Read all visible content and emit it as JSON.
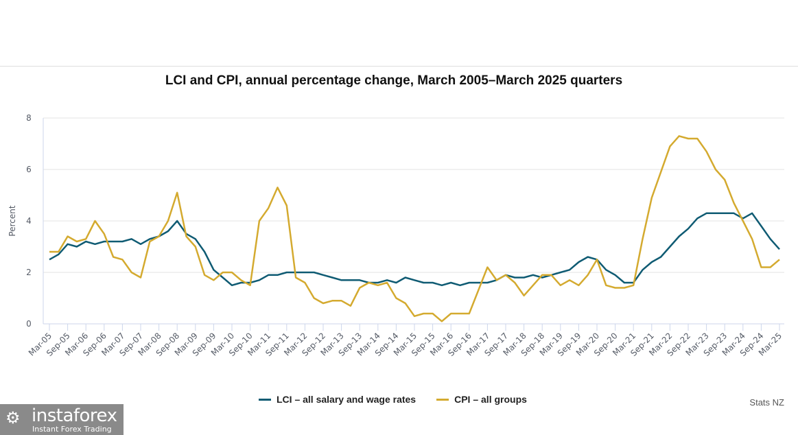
{
  "chart_data": {
    "type": "line",
    "title": "LCI and CPI, annual percentage change, March 2005–March 2025 quarters",
    "xlabel": "",
    "ylabel": "Percent",
    "ylim": [
      0,
      8
    ],
    "yticks": [
      "0",
      "2",
      "4",
      "6",
      "8"
    ],
    "grid": true,
    "legend_position": "bottom",
    "x": [
      "Mar-05",
      "Jun-05",
      "Sep-05",
      "Dec-05",
      "Mar-06",
      "Jun-06",
      "Sep-06",
      "Dec-06",
      "Mar-07",
      "Jun-07",
      "Sep-07",
      "Dec-07",
      "Mar-08",
      "Jun-08",
      "Sep-08",
      "Dec-08",
      "Mar-09",
      "Jun-09",
      "Sep-09",
      "Dec-09",
      "Mar-10",
      "Jun-10",
      "Sep-10",
      "Dec-10",
      "Mar-11",
      "Jun-11",
      "Sep-11",
      "Dec-11",
      "Mar-12",
      "Jun-12",
      "Sep-12",
      "Dec-12",
      "Mar-13",
      "Jun-13",
      "Sep-13",
      "Dec-13",
      "Mar-14",
      "Jun-14",
      "Sep-14",
      "Dec-14",
      "Mar-15",
      "Jun-15",
      "Sep-15",
      "Dec-15",
      "Mar-16",
      "Jun-16",
      "Sep-16",
      "Dec-16",
      "Mar-17",
      "Jun-17",
      "Sep-17",
      "Dec-17",
      "Mar-18",
      "Jun-18",
      "Sep-18",
      "Dec-18",
      "Mar-19",
      "Jun-19",
      "Sep-19",
      "Dec-19",
      "Mar-20",
      "Jun-20",
      "Sep-20",
      "Dec-20",
      "Mar-21",
      "Jun-21",
      "Sep-21",
      "Dec-21",
      "Mar-22",
      "Jun-22",
      "Sep-22",
      "Dec-22",
      "Mar-23",
      "Jun-23",
      "Sep-23",
      "Dec-23",
      "Mar-24",
      "Jun-24",
      "Sep-24",
      "Dec-24",
      "Mar-25"
    ],
    "xtick_labels": [
      "Mar-05",
      "Sep-05",
      "Mar-06",
      "Sep-06",
      "Mar-07",
      "Sep-07",
      "Mar-08",
      "Sep-08",
      "Mar-09",
      "Sep-09",
      "Mar-10",
      "Sep-10",
      "Mar-11",
      "Sep-11",
      "Mar-12",
      "Sep-12",
      "Mar-13",
      "Sep-13",
      "Mar-14",
      "Sep-14",
      "Mar-15",
      "Sep-15",
      "Mar-16",
      "Sep-16",
      "Mar-17",
      "Sep-17",
      "Mar-18",
      "Sep-18",
      "Mar-19",
      "Sep-19",
      "Mar-20",
      "Sep-20",
      "Mar-21",
      "Sep-21",
      "Mar-22",
      "Sep-22",
      "Mar-23",
      "Sep-23",
      "Mar-24",
      "Sep-24",
      "Mar-25"
    ],
    "series": [
      {
        "name": "LCI – all salary and wage rates",
        "color": "#0f5b73",
        "values": [
          2.5,
          2.7,
          3.1,
          3.0,
          3.2,
          3.1,
          3.2,
          3.2,
          3.2,
          3.3,
          3.1,
          3.3,
          3.4,
          3.6,
          4.0,
          3.5,
          3.3,
          2.8,
          2.1,
          1.8,
          1.5,
          1.6,
          1.6,
          1.7,
          1.9,
          1.9,
          2.0,
          2.0,
          2.0,
          2.0,
          1.9,
          1.8,
          1.7,
          1.7,
          1.7,
          1.6,
          1.6,
          1.7,
          1.6,
          1.8,
          1.7,
          1.6,
          1.6,
          1.5,
          1.6,
          1.5,
          1.6,
          1.6,
          1.6,
          1.7,
          1.9,
          1.8,
          1.8,
          1.9,
          1.8,
          1.9,
          2.0,
          2.1,
          2.4,
          2.6,
          2.5,
          2.1,
          1.9,
          1.6,
          1.6,
          2.1,
          2.4,
          2.6,
          3.0,
          3.4,
          3.7,
          4.1,
          4.3,
          4.3,
          4.3,
          4.3,
          4.1,
          4.3,
          3.8,
          3.3,
          2.9
        ]
      },
      {
        "name": "CPI – all groups",
        "color": "#d4aa2f",
        "values": [
          2.8,
          2.8,
          3.4,
          3.2,
          3.3,
          4.0,
          3.5,
          2.6,
          2.5,
          2.0,
          1.8,
          3.2,
          3.4,
          4.0,
          5.1,
          3.4,
          3.0,
          1.9,
          1.7,
          2.0,
          2.0,
          1.7,
          1.5,
          4.0,
          4.5,
          5.3,
          4.6,
          1.8,
          1.6,
          1.0,
          0.8,
          0.9,
          0.9,
          0.7,
          1.4,
          1.6,
          1.5,
          1.6,
          1.0,
          0.8,
          0.3,
          0.4,
          0.4,
          0.1,
          0.4,
          0.4,
          0.4,
          1.3,
          2.2,
          1.7,
          1.9,
          1.6,
          1.1,
          1.5,
          1.9,
          1.9,
          1.5,
          1.7,
          1.5,
          1.9,
          2.5,
          1.5,
          1.4,
          1.4,
          1.5,
          3.3,
          4.9,
          5.9,
          6.9,
          7.3,
          7.2,
          7.2,
          6.7,
          6.0,
          5.6,
          4.7,
          4.0,
          3.3,
          2.2,
          2.2,
          2.5
        ]
      }
    ]
  },
  "legend": {
    "items": [
      {
        "label": "LCI – all salary and wage rates",
        "color": "#0f5b73"
      },
      {
        "label": "CPI – all groups",
        "color": "#d4aa2f"
      }
    ]
  },
  "source": "Stats NZ",
  "watermark": {
    "name": "instaforex",
    "tagline": "Instant Forex Trading"
  }
}
